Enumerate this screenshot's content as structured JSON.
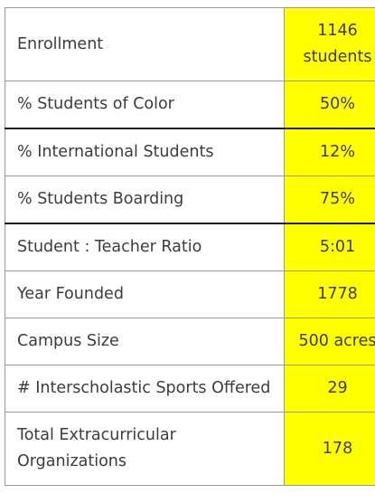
{
  "rows": [
    {
      "label": "Enrollment",
      "value": "1146 students"
    },
    {
      "label": "% Students of Color",
      "value": "50%"
    },
    {
      "label": "% International Students",
      "value": "12%"
    },
    {
      "label": "% Students Boarding",
      "value": "75%"
    },
    {
      "label": "Student : Teacher Ratio",
      "value": "5:01"
    },
    {
      "label": "Year Founded",
      "value": "1778"
    },
    {
      "label": "Campus Size",
      "value": "500 acres"
    },
    {
      "label": "# Interscholastic Sports Offered",
      "value": "29"
    },
    {
      "label": "Total Extracurricular Organizations",
      "value": "178"
    }
  ],
  "colors": {
    "highlight": "#ffff00",
    "text": "#3c3c3c",
    "border": "#9a9a9a",
    "thick_border": "#1e1e1e"
  }
}
